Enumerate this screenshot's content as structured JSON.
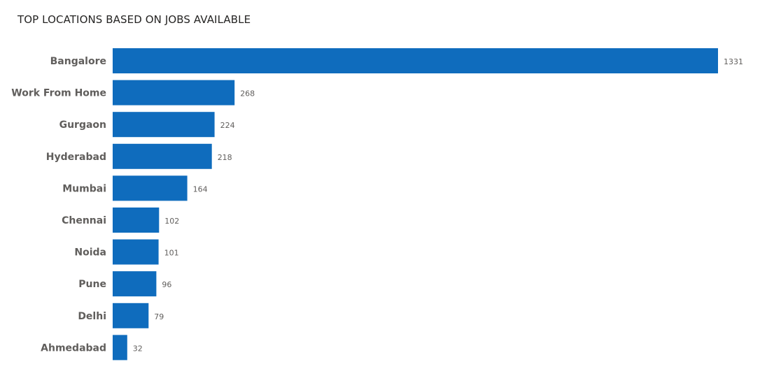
{
  "chart_data": {
    "type": "bar",
    "orientation": "horizontal",
    "title": "TOP LOCATIONS BASED ON JOBS AVAILABLE",
    "categories": [
      "Bangalore",
      "Work From Home",
      "Gurgaon",
      "Hyderabad",
      "Mumbai",
      "Chennai",
      "Noida",
      "Pune",
      "Delhi",
      "Ahmedabad"
    ],
    "values": [
      1331,
      268,
      224,
      218,
      164,
      102,
      101,
      96,
      79,
      32
    ],
    "xlabel": "",
    "ylabel": "",
    "grid": false,
    "legend": "none",
    "data_labels": true,
    "bar_color": "#0f6cbd",
    "xlim": [
      0,
      1331
    ]
  }
}
